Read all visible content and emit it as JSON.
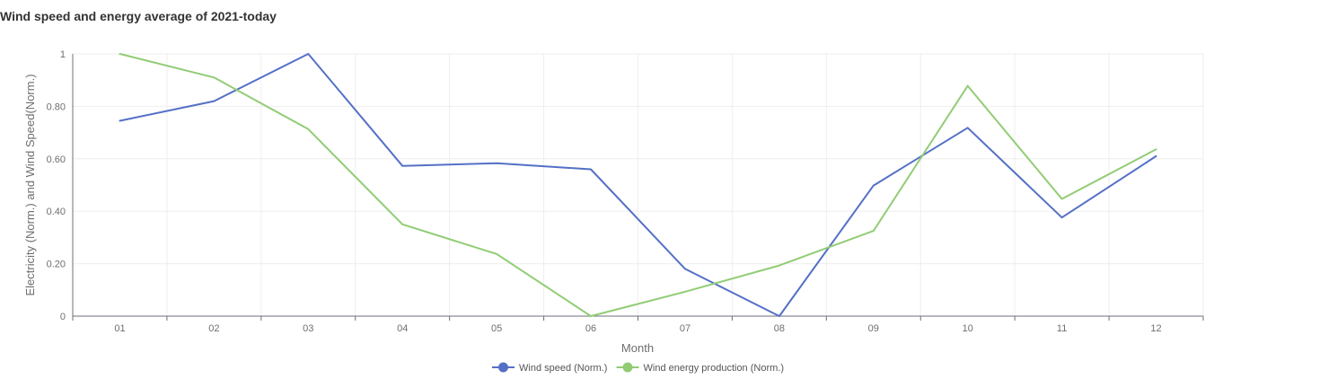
{
  "chart_data": {
    "type": "line",
    "title": "Wind speed and energy average of 2021-today",
    "xlabel": "Month",
    "ylabel": "Electricity (Norm.) and Wind Speed(Norm.)",
    "categories": [
      "01",
      "02",
      "03",
      "04",
      "05",
      "06",
      "07",
      "08",
      "09",
      "10",
      "11",
      "12"
    ],
    "y_ticks": [
      "0",
      "0.20",
      "0.40",
      "0.60",
      "0.80",
      "1"
    ],
    "ylim": [
      0,
      1
    ],
    "grid": true,
    "legend_position": "bottom-center",
    "series": [
      {
        "name": "Wind speed (Norm.)",
        "color": "#5470c6",
        "values": [
          0.745,
          0.82,
          1.0,
          0.573,
          0.583,
          0.56,
          0.18,
          0.0,
          0.498,
          0.718,
          0.376,
          0.61
        ]
      },
      {
        "name": "Wind energy production (Norm.)",
        "color": "#91cc75",
        "values": [
          1.0,
          0.91,
          0.713,
          0.35,
          0.237,
          0.0,
          0.093,
          0.193,
          0.325,
          0.878,
          0.447,
          0.636
        ]
      }
    ]
  }
}
